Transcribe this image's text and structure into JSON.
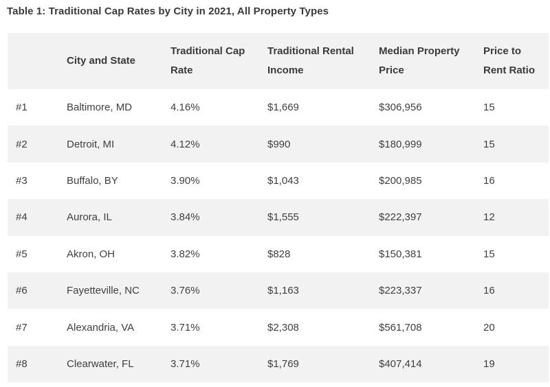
{
  "title": "Table 1: Traditional Cap Rates by City in 2021, All Property Types",
  "table": {
    "headers": [
      "",
      "City and State",
      "Traditional Cap Rate",
      "Traditional Rental Income",
      "Median Property Price",
      "Price to Rent Ratio"
    ],
    "rows": [
      [
        "#1",
        "Baltimore, MD",
        "4.16%",
        "$1,669",
        "$306,956",
        "15"
      ],
      [
        "#2",
        "Detroit, MI",
        "4.12%",
        "$990",
        "$180,999",
        "15"
      ],
      [
        "#3",
        "Buffalo, BY",
        "3.90%",
        "$1,043",
        "$200,985",
        "16"
      ],
      [
        "#4",
        "Aurora, IL",
        "3.84%",
        "$1,555",
        "$222,397",
        "12"
      ],
      [
        "#5",
        "Akron, OH",
        "3.82%",
        "$828",
        "$150,381",
        "15"
      ],
      [
        "#6",
        "Fayetteville, NC",
        "3.76%",
        "$1,163",
        "$223,337",
        "16"
      ],
      [
        "#7",
        "Alexandria, VA",
        "3.71%",
        "$2,308",
        "$561,708",
        "20"
      ],
      [
        "#8",
        "Clearwater, FL",
        "3.71%",
        "$1,769",
        "$407,414",
        "19"
      ]
    ]
  },
  "colors": {
    "header_bg": "#f2f2f2",
    "stripe_bg": "#f2f2f2",
    "text": "#3f3f3f"
  }
}
